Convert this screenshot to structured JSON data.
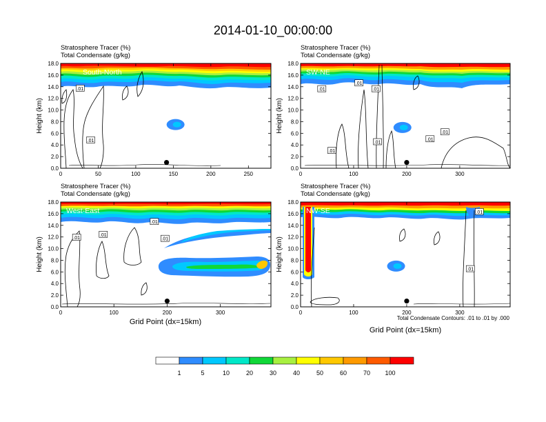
{
  "title": "2014-01-10_00:00:00",
  "colors": {
    "levels": [
      "#ffffff",
      "#2f8cff",
      "#00c8ff",
      "#00e8c8",
      "#10d838",
      "#a8f040",
      "#ffff00",
      "#ffc800",
      "#ff9a00",
      "#ff5a00",
      "#ff0000"
    ],
    "contour": "#000000",
    "marker": "#000000"
  },
  "colorbar": {
    "labels": [
      "1",
      "5",
      "10",
      "20",
      "30",
      "40",
      "50",
      "60",
      "70",
      "100"
    ]
  },
  "contour_note": "Total Condensate Contours: .01 to .01 by .000",
  "chart_data": [
    {
      "type": "heatmap",
      "title": "South-North",
      "subtitle_line1": "Stratosphere Tracer   (%)",
      "subtitle_line2": "Total Condensate   (g/kg)",
      "ylabel": "Height (km)",
      "xlabel": "",
      "xlim": [
        0,
        280
      ],
      "ylim": [
        0,
        18
      ],
      "xticks": [
        "0",
        "50",
        "100",
        "150",
        "200",
        "250"
      ],
      "xtick_values": [
        0,
        50,
        100,
        150,
        200,
        250
      ],
      "yticks": [
        "0.0",
        "2.0",
        "4.0",
        "6.0",
        "8.0",
        "10.0",
        "12.0",
        "14.0",
        "16.0",
        "18.0"
      ],
      "contour_labels": [
        {
          "text": ".01",
          "x": 26,
          "y": 13.7
        },
        {
          "text": ".01",
          "x": 40,
          "y": 4.8
        }
      ],
      "marker": {
        "x": 141,
        "y": 1.0
      },
      "blob": {
        "x": 153,
        "y": 7.5
      }
    },
    {
      "type": "heatmap",
      "title": "SW-NE",
      "subtitle_line1": "Stratosphere Tracer   (%)",
      "subtitle_line2": "Total Condensate   (g/kg)",
      "ylabel": "Height (km)",
      "xlabel": "",
      "xlim": [
        0,
        395
      ],
      "ylim": [
        0,
        18
      ],
      "xticks": [
        "0",
        "100",
        "200",
        "300"
      ],
      "xtick_values": [
        0,
        100,
        200,
        300
      ],
      "yticks": [
        "0.0",
        "2.0",
        "4.0",
        "6.0",
        "8.0",
        "10.0",
        "12.0",
        "14.0",
        "16.0",
        "18.0"
      ],
      "contour_labels": [
        {
          "text": ".01",
          "x": 110,
          "y": 14.6
        },
        {
          "text": ".01",
          "x": 142,
          "y": 13.6
        },
        {
          "text": ".01",
          "x": 40,
          "y": 13.6
        },
        {
          "text": ".01",
          "x": 59,
          "y": 3.0
        },
        {
          "text": ".01",
          "x": 145,
          "y": 4.5
        },
        {
          "text": ".01",
          "x": 244,
          "y": 5.0
        },
        {
          "text": ".01",
          "x": 272,
          "y": 6.2
        }
      ],
      "marker": {
        "x": 200,
        "y": 1.0
      },
      "blob": {
        "x": 192,
        "y": 7.0
      }
    },
    {
      "type": "heatmap",
      "title": "West-East",
      "subtitle_line1": "Stratosphere Tracer   (%)",
      "subtitle_line2": "Total Condensate   (g/kg)",
      "ylabel": "Height (km)",
      "xlabel": "Grid Point (dx=15km)",
      "xlim": [
        0,
        395
      ],
      "ylim": [
        0,
        18
      ],
      "xticks": [
        "0",
        "100",
        "200",
        "300"
      ],
      "xtick_values": [
        0,
        100,
        200,
        300
      ],
      "yticks": [
        "0.0",
        "2.0",
        "4.0",
        "6.0",
        "8.0",
        "10.0",
        "12.0",
        "14.0",
        "16.0",
        "18.0"
      ],
      "contour_labels": [
        {
          "text": ".01",
          "x": 80,
          "y": 12.4
        },
        {
          "text": ".01",
          "x": 30,
          "y": 11.9
        },
        {
          "text": ".01",
          "x": 176,
          "y": 14.6
        },
        {
          "text": ".01",
          "x": 196,
          "y": 11.7
        }
      ],
      "marker": {
        "x": 200,
        "y": 1.0
      },
      "blob": {
        "x": 270,
        "y": 7.0
      }
    },
    {
      "type": "heatmap",
      "title": "NW-SE",
      "subtitle_line1": "Stratosphere Tracer   (%)",
      "subtitle_line2": "Total Condensate   (g/kg)",
      "ylabel": "Height (km)",
      "xlabel": "Grid Point (dx=15km)",
      "xlim": [
        0,
        395
      ],
      "ylim": [
        0,
        18
      ],
      "xticks": [
        "0",
        "100",
        "200",
        "300"
      ],
      "xtick_values": [
        0,
        100,
        200,
        300
      ],
      "yticks": [
        "0.0",
        "2.0",
        "4.0",
        "6.0",
        "8.0",
        "10.0",
        "12.0",
        "14.0",
        "16.0",
        "18.0"
      ],
      "contour_labels": [
        {
          "text": ".01",
          "x": 337,
          "y": 16.3
        },
        {
          "text": ".01",
          "x": 320,
          "y": 6.5
        }
      ],
      "marker": {
        "x": 200,
        "y": 1.0
      },
      "blob": {
        "x": 180,
        "y": 7.0
      }
    }
  ]
}
